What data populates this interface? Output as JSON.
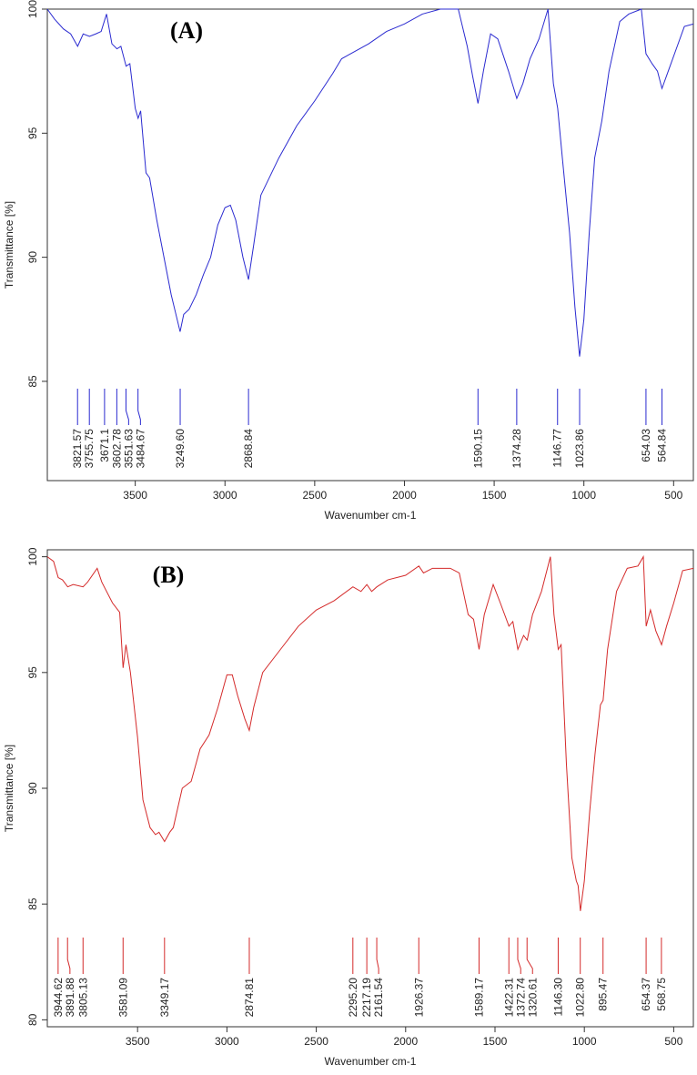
{
  "chart_data": [
    {
      "type": "line",
      "title": "(A)",
      "x_label": "Wavenumber cm-1",
      "y_label": "Transmittance [%]",
      "color": "#2a2ad0",
      "xlim": [
        3990,
        390
      ],
      "ylim": [
        81,
        100
      ],
      "xticks": [
        3500,
        3000,
        2500,
        2000,
        1500,
        1000,
        500
      ],
      "yticks": [
        85,
        90,
        95,
        100
      ],
      "x": [
        3990,
        3950,
        3900,
        3860,
        3821,
        3790,
        3755,
        3720,
        3690,
        3660,
        3630,
        3602,
        3580,
        3551,
        3530,
        3500,
        3484,
        3470,
        3440,
        3420,
        3380,
        3340,
        3300,
        3270,
        3250,
        3230,
        3200,
        3160,
        3120,
        3080,
        3040,
        3000,
        2970,
        2940,
        2900,
        2869,
        2840,
        2800,
        2700,
        2600,
        2500,
        2400,
        2350,
        2300,
        2200,
        2100,
        2000,
        1900,
        1800,
        1700,
        1650,
        1620,
        1590,
        1560,
        1520,
        1480,
        1420,
        1374,
        1340,
        1300,
        1250,
        1200,
        1170,
        1146,
        1120,
        1080,
        1050,
        1024,
        1000,
        970,
        940,
        900,
        860,
        800,
        750,
        680,
        654,
        620,
        590,
        565,
        530,
        480,
        440,
        390
      ],
      "values": [
        100,
        99.6,
        99.2,
        99.0,
        98.5,
        99.0,
        98.9,
        99.0,
        99.1,
        99.8,
        98.6,
        98.4,
        98.5,
        97.7,
        97.8,
        96.0,
        95.6,
        95.9,
        93.4,
        93.2,
        91.5,
        90.0,
        88.5,
        87.6,
        87.0,
        87.7,
        87.9,
        88.5,
        89.3,
        90.0,
        91.3,
        92.0,
        92.1,
        91.5,
        90.0,
        89.1,
        90.5,
        92.5,
        94.0,
        95.3,
        96.3,
        97.4,
        98.0,
        98.2,
        98.6,
        99.1,
        99.4,
        99.8,
        100,
        100,
        98.5,
        97.3,
        96.2,
        97.5,
        99.0,
        98.8,
        97.5,
        96.4,
        97.0,
        98.0,
        98.8,
        100,
        97.0,
        96.0,
        94.0,
        91.0,
        88.0,
        86.0,
        87.5,
        91.0,
        94.0,
        95.5,
        97.5,
        99.5,
        99.8,
        100,
        98.2,
        97.8,
        97.5,
        96.8,
        97.5,
        98.5,
        99.3,
        99.4
      ],
      "peaks": [
        3821.57,
        3755.75,
        3671.1,
        3602.78,
        3551.63,
        3484.67,
        {
          "value": 3249.6,
          "label": "3249.60"
        },
        2868.84,
        1590.15,
        1374.28,
        1146.77,
        1023.86,
        654.03,
        564.84
      ]
    },
    {
      "type": "line",
      "title": "(B)",
      "x_label": "Wavenumber cm-1",
      "y_label": "Transmittance [%]",
      "color": "#d42a2a",
      "xlim": [
        4005,
        390
      ],
      "ylim": [
        79.7,
        100.3
      ],
      "xticks": [
        3500,
        3000,
        2500,
        2000,
        1500,
        1000,
        500
      ],
      "yticks": [
        80,
        85,
        90,
        95,
        100
      ],
      "x": [
        4005,
        3970,
        3944,
        3920,
        3891,
        3860,
        3805,
        3780,
        3726,
        3700,
        3640,
        3600,
        3581,
        3565,
        3540,
        3500,
        3470,
        3430,
        3400,
        3380,
        3349,
        3320,
        3300,
        3250,
        3200,
        3150,
        3100,
        3050,
        3000,
        2970,
        2940,
        2900,
        2875,
        2850,
        2800,
        2700,
        2600,
        2500,
        2400,
        2295,
        2250,
        2217,
        2190,
        2161,
        2100,
        2000,
        1926,
        1900,
        1850,
        1750,
        1700,
        1650,
        1620,
        1589,
        1560,
        1510,
        1470,
        1422,
        1400,
        1372,
        1340,
        1320,
        1290,
        1240,
        1190,
        1170,
        1146,
        1130,
        1100,
        1070,
        1045,
        1035,
        1022,
        1000,
        970,
        940,
        910,
        895,
        870,
        820,
        760,
        700,
        670,
        654,
        630,
        600,
        568,
        540,
        500,
        450,
        390
      ],
      "values": [
        100,
        99.8,
        99.1,
        99.0,
        98.7,
        98.8,
        98.7,
        98.9,
        99.5,
        98.9,
        98.0,
        97.6,
        95.2,
        96.2,
        95.0,
        92.2,
        89.5,
        88.3,
        88.0,
        88.1,
        87.7,
        88.1,
        88.3,
        90.0,
        90.3,
        91.7,
        92.3,
        93.5,
        94.9,
        94.9,
        94.0,
        93.0,
        92.5,
        93.5,
        95.0,
        96.0,
        97.0,
        97.7,
        98.1,
        98.7,
        98.5,
        98.8,
        98.5,
        98.7,
        99.0,
        99.2,
        99.6,
        99.3,
        99.5,
        99.5,
        99.3,
        97.5,
        97.3,
        96.0,
        97.5,
        98.8,
        98.0,
        97.0,
        97.2,
        96.0,
        96.6,
        96.4,
        97.5,
        98.5,
        100,
        97.5,
        96.0,
        96.2,
        91.0,
        87.0,
        86.0,
        85.8,
        84.7,
        86.0,
        89.0,
        91.5,
        93.6,
        93.8,
        96.0,
        98.5,
        99.5,
        99.6,
        100,
        97.0,
        97.7,
        96.8,
        96.2,
        97.0,
        98.0,
        99.4,
        99.5
      ],
      "peaks": [
        3944.62,
        3891.88,
        3805.13,
        3581.09,
        3349.17,
        2874.81,
        {
          "value": 2295.2,
          "label": "2295.20"
        },
        2217.19,
        2161.54,
        1926.37,
        1589.17,
        1422.31,
        1372.74,
        1320.61,
        {
          "value": 1146.3,
          "label": "1146.30"
        },
        {
          "value": 1022.8,
          "label": "1022.80"
        },
        895.47,
        654.37,
        568.75
      ]
    }
  ]
}
